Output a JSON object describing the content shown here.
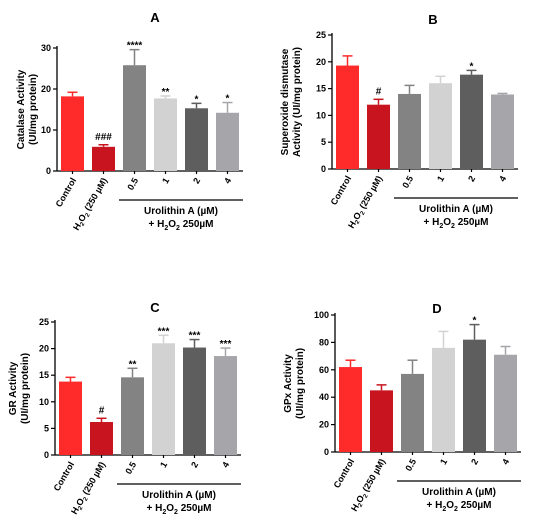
{
  "shared": {
    "categories": [
      "Control",
      "H₂O₂ (250 µM)",
      "0.5",
      "1",
      "2",
      "4"
    ],
    "colors": [
      "#ff2a2a",
      "#c8141e",
      "#838383",
      "#d2d2d2",
      "#5e5e5e",
      "#a6a6aa"
    ],
    "group_label_line1": "Urolithin A (µM)",
    "group_label_line2": "+ H₂O₂ 250µM"
  },
  "chart_data": [
    {
      "type": "bar",
      "title": "A",
      "ylabel_line1": "Catalase Activity",
      "ylabel_line2": "(UI/mg protein)",
      "ylim": [
        0,
        30
      ],
      "yticks": [
        0,
        10,
        20,
        30
      ],
      "categories": [
        "Control",
        "H₂O₂ (250 µM)",
        "0.5",
        "1",
        "2",
        "4"
      ],
      "values": [
        18.2,
        5.9,
        25.8,
        17.7,
        15.3,
        14.2
      ],
      "errors": [
        1.0,
        0.5,
        3.8,
        0.6,
        1.2,
        2.5
      ],
      "annotations": [
        "",
        "###",
        "****",
        "**",
        "*",
        "*"
      ]
    },
    {
      "type": "bar",
      "title": "B",
      "ylabel_line1": "Superoxide dismutase",
      "ylabel_line2": "Activity (UI/mg protein)",
      "ylim": [
        0,
        25
      ],
      "yticks": [
        0,
        5,
        10,
        15,
        20,
        25
      ],
      "categories": [
        "Control",
        "H₂O₂ (250 µM)",
        "0.5",
        "1",
        "2",
        "4"
      ],
      "values": [
        19.3,
        12.0,
        14.0,
        16.0,
        17.6,
        13.9
      ],
      "errors": [
        1.8,
        1.0,
        1.6,
        1.3,
        0.8,
        0.2
      ],
      "annotations": [
        "",
        "#",
        "",
        "",
        "*",
        ""
      ]
    },
    {
      "type": "bar",
      "title": "C",
      "ylabel_line1": "GR Activity",
      "ylabel_line2": "(UI/mg protein)",
      "ylim": [
        0,
        25
      ],
      "yticks": [
        0,
        5,
        10,
        15,
        20,
        25
      ],
      "categories": [
        "Control",
        "H₂O₂ (250 µM)",
        "0.5",
        "1",
        "2",
        "4"
      ],
      "values": [
        13.8,
        6.2,
        14.6,
        21.0,
        20.2,
        18.6
      ],
      "errors": [
        0.8,
        0.7,
        1.7,
        1.5,
        1.5,
        1.5
      ],
      "annotations": [
        "",
        "#",
        "**",
        "***",
        "***",
        "***"
      ]
    },
    {
      "type": "bar",
      "title": "D",
      "ylabel_line1": "GPx Activity",
      "ylabel_line2": "(UI/mg protein)",
      "ylim": [
        0,
        100
      ],
      "yticks": [
        0,
        20,
        40,
        60,
        80,
        100
      ],
      "categories": [
        "Control",
        "H₂O₂ (250 µM)",
        "0.5",
        "1",
        "2",
        "4"
      ],
      "values": [
        62,
        45,
        57,
        76,
        82,
        71
      ],
      "errors": [
        5,
        4,
        10,
        12,
        11,
        6
      ],
      "annotations": [
        "",
        "",
        "",
        "",
        "*",
        ""
      ]
    }
  ]
}
